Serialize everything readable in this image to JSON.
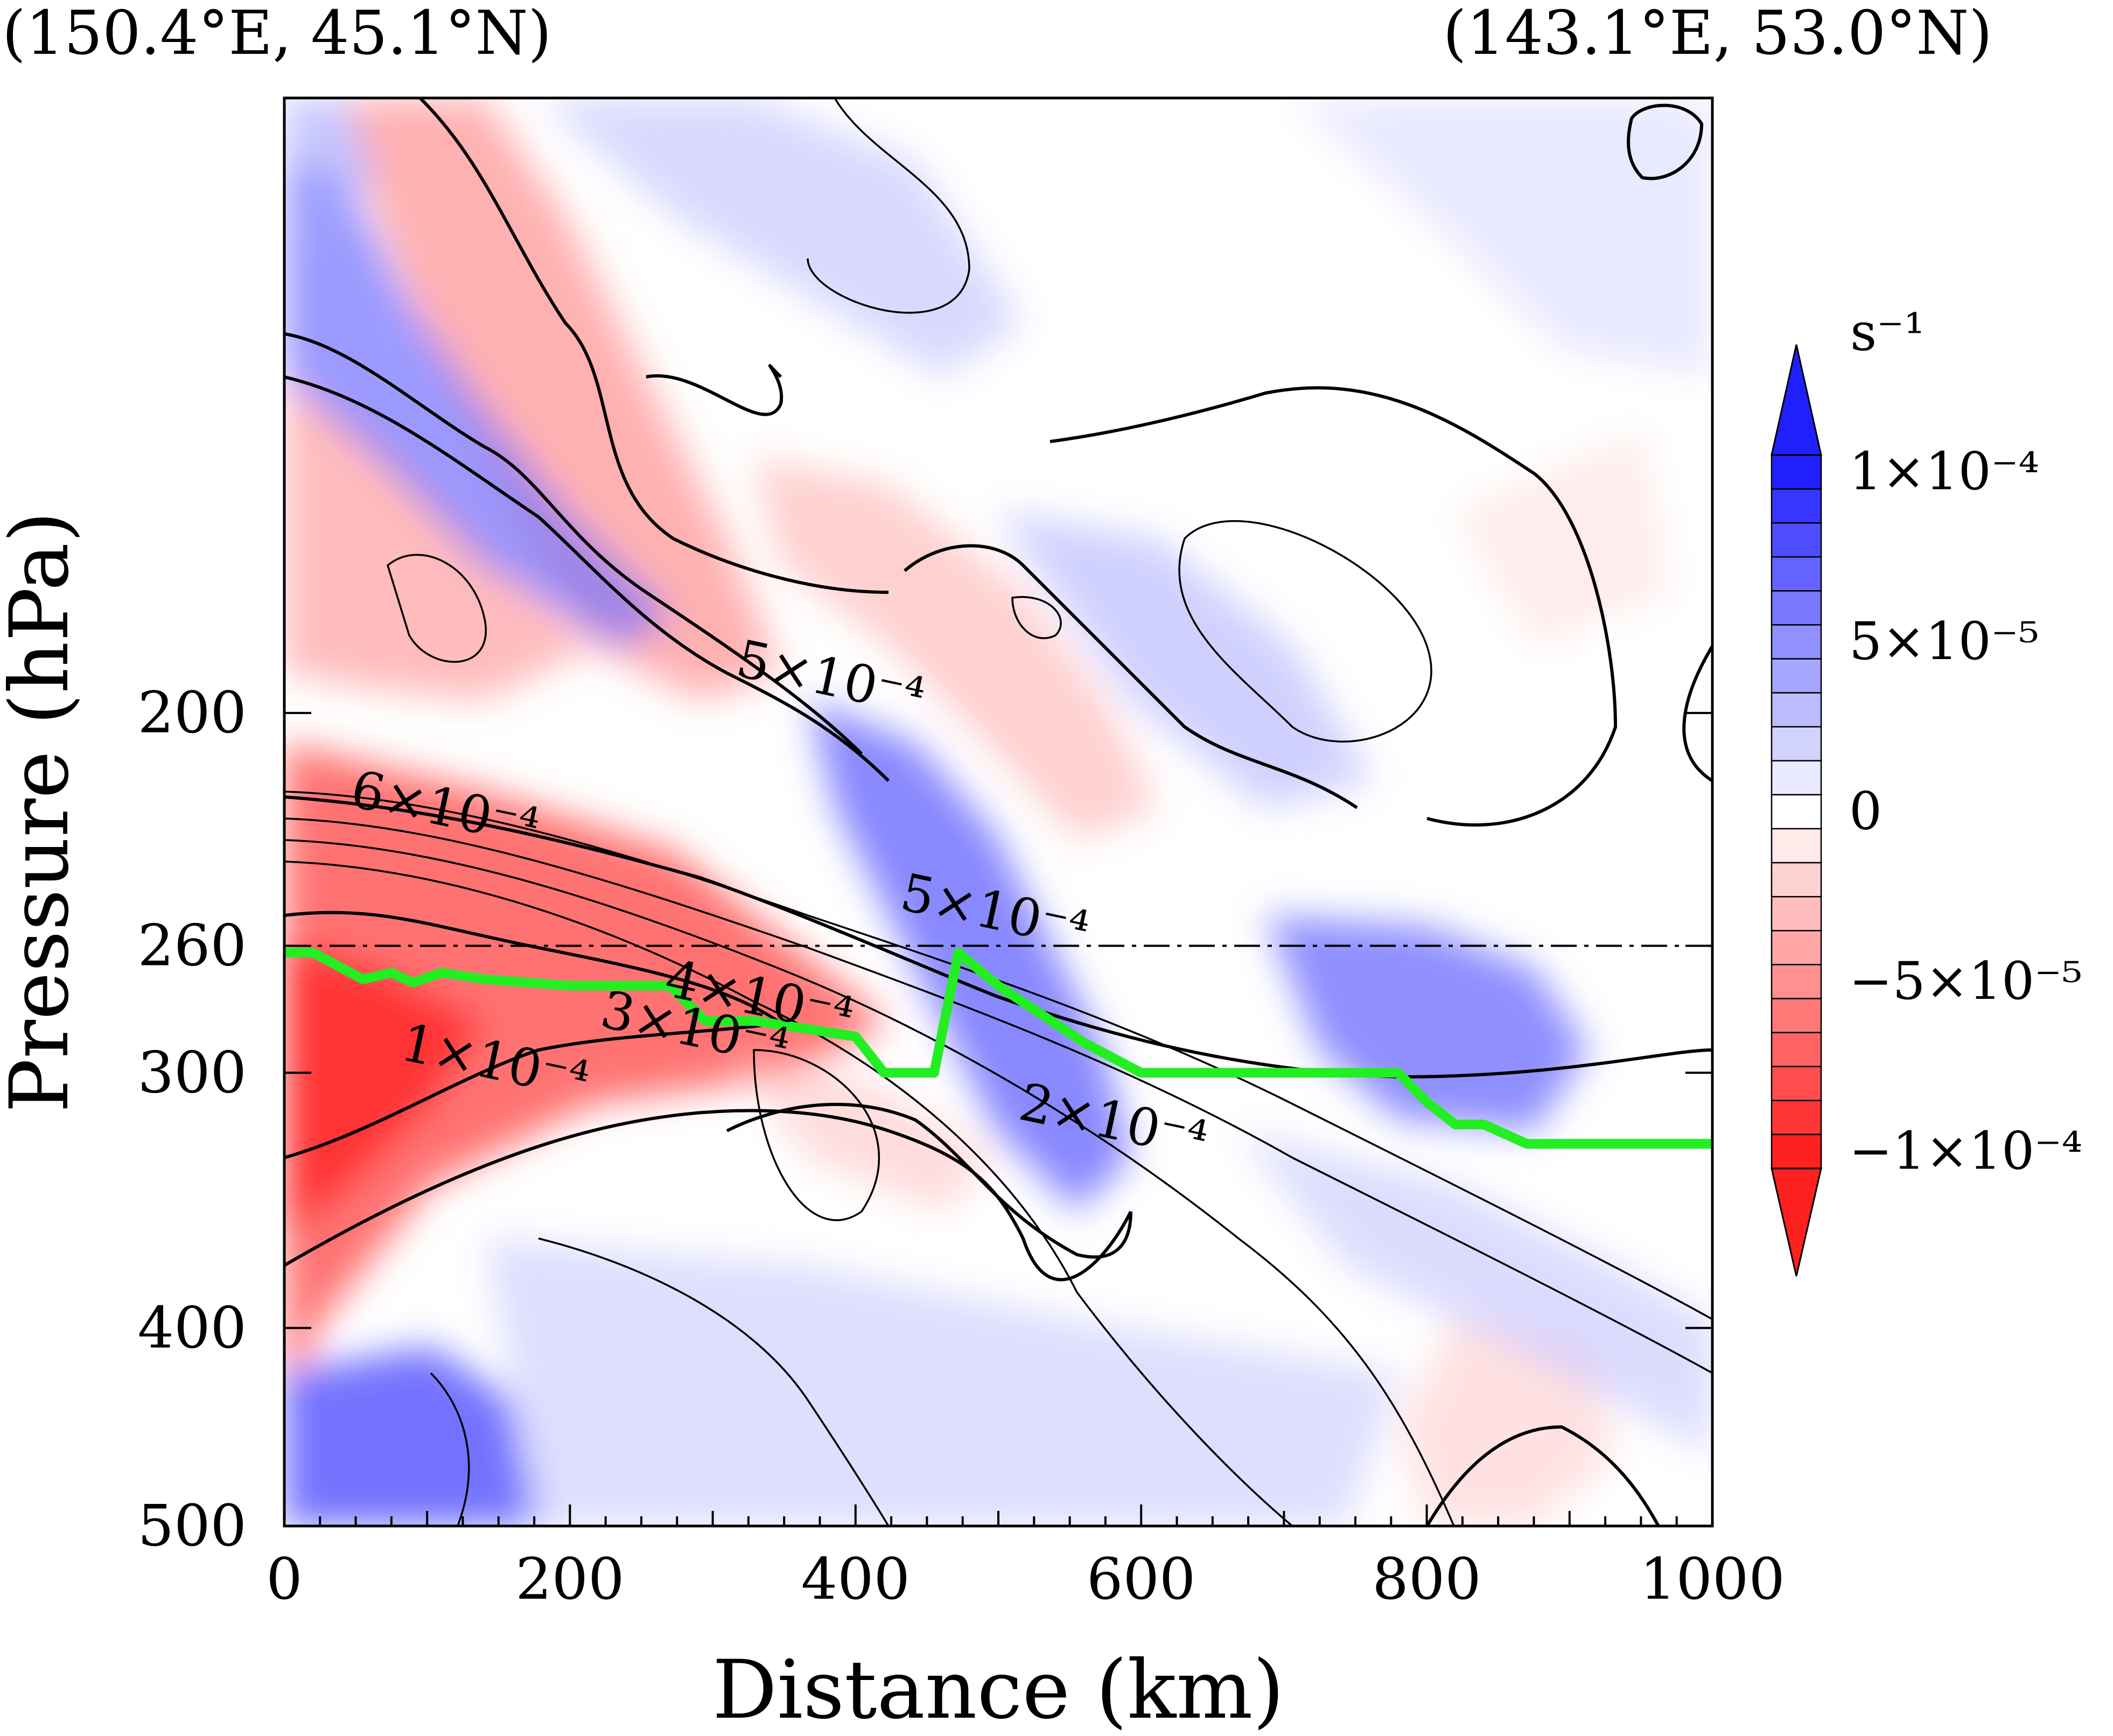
{
  "figure": {
    "left_corner": "(150.4°E, 45.1°N)",
    "right_corner": "(143.1°E, 53.0°N)"
  },
  "chart_data": {
    "type": "contour-cross-section",
    "xlabel": "Distance (km)",
    "ylabel": "Pressure (hPa)",
    "xlim": [
      0,
      1000
    ],
    "ylim": [
      500,
      100
    ],
    "x_ticks": [
      0,
      200,
      400,
      600,
      800,
      1000
    ],
    "x_tick_labels": [
      "0",
      "200",
      "400",
      "600",
      "800",
      "1000"
    ],
    "y_ticks": [
      200,
      260,
      300,
      400,
      500
    ],
    "y_tick_labels": [
      "200",
      "260",
      "300",
      "400",
      "500"
    ],
    "reference_line_hPa": 260,
    "colorbar": {
      "unit": "s⁻¹",
      "min": -0.0001,
      "max": 0.0001,
      "levels": 21,
      "labels": [
        "1×10⁻⁴",
        "5×10⁻⁵",
        "0",
        "−5×10⁻⁵",
        "−1×10⁻⁴"
      ],
      "positive_color": "#2020ff",
      "negative_color": "#ff2020"
    },
    "contour_labels": [
      {
        "text": "5×10⁻⁴",
        "x": 380,
        "p": 196
      },
      {
        "text": "6×10⁻⁴",
        "x": 110,
        "p": 227
      },
      {
        "text": "5×10⁻⁴",
        "x": 495,
        "p": 255
      },
      {
        "text": "4×10⁻⁴",
        "x": 330,
        "p": 281
      },
      {
        "text": "3×10⁻⁴",
        "x": 285,
        "p": 291
      },
      {
        "text": "1×10⁻⁴",
        "x": 145,
        "p": 302
      },
      {
        "text": "2×10⁻⁴",
        "x": 578,
        "p": 323
      }
    ],
    "tropopause_line": {
      "color": "#22ee22",
      "x": [
        0,
        20,
        55,
        75,
        90,
        110,
        140,
        200,
        270,
        295,
        330,
        400,
        420,
        455,
        472,
        500,
        560,
        600,
        780,
        800,
        820,
        840,
        870,
        1000
      ],
      "p": [
        262,
        262,
        270,
        268,
        271,
        268,
        270,
        272,
        272,
        283,
        283,
        288,
        300,
        300,
        262,
        272,
        290,
        300,
        300,
        310,
        318,
        318,
        325,
        325
      ]
    }
  }
}
